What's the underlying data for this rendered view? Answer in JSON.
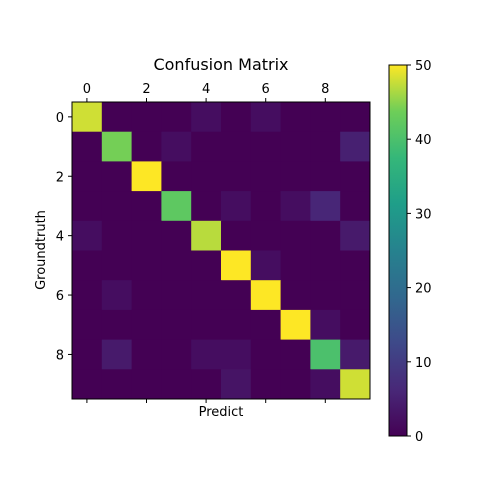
{
  "chart_data": {
    "type": "heatmap",
    "title": "Confusion Matrix",
    "xlabel": "Predict",
    "ylabel": "Groundtruth",
    "x_ticks": [
      0,
      2,
      4,
      6,
      8
    ],
    "y_ticks": [
      0,
      2,
      4,
      6,
      8
    ],
    "x_tick_labels": [
      "0",
      "2",
      "4",
      "6",
      "8"
    ],
    "y_tick_labels": [
      "0",
      "2",
      "4",
      "6",
      "8"
    ],
    "x_tick_position": "top",
    "colorbar": {
      "min": 0,
      "max": 50,
      "ticks": [
        "0",
        "10",
        "20",
        "30",
        "40",
        "50"
      ],
      "colormap": "viridis"
    },
    "matrix": [
      [
        48,
        0,
        0,
        0,
        2,
        0,
        2,
        0,
        0,
        0
      ],
      [
        0,
        44,
        0,
        2,
        0,
        0,
        0,
        0,
        0,
        5
      ],
      [
        0,
        0,
        50,
        0,
        0,
        0,
        0,
        0,
        0,
        0
      ],
      [
        0,
        0,
        0,
        42,
        0,
        2,
        0,
        2,
        6,
        0
      ],
      [
        2,
        0,
        0,
        0,
        47,
        0,
        0,
        0,
        0,
        4
      ],
      [
        0,
        0,
        0,
        0,
        0,
        50,
        2,
        0,
        0,
        0
      ],
      [
        0,
        2,
        0,
        0,
        0,
        0,
        50,
        0,
        0,
        0
      ],
      [
        0,
        0,
        0,
        0,
        0,
        0,
        0,
        50,
        2,
        0
      ],
      [
        0,
        4,
        0,
        0,
        2,
        2,
        0,
        0,
        40,
        4
      ],
      [
        0,
        0,
        0,
        0,
        0,
        3,
        0,
        0,
        2,
        48
      ]
    ]
  }
}
